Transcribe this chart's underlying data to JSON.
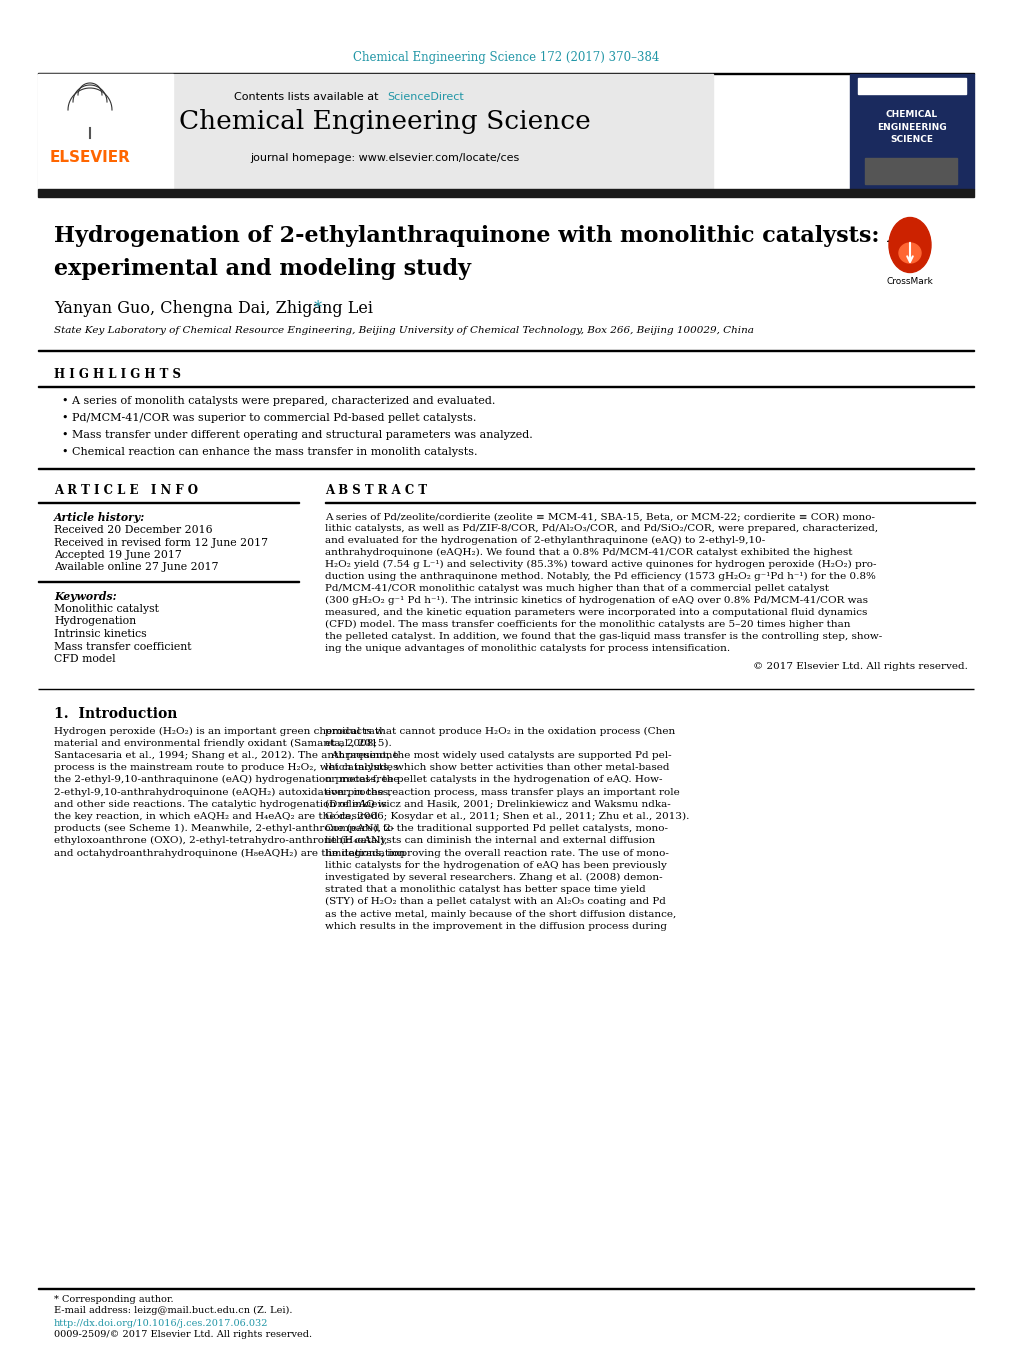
{
  "journal_ref": "Chemical Engineering Science 172 (2017) 370–384",
  "journal_ref_color": "#2196A6",
  "journal_name": "Chemical Engineering Science",
  "contents_line": "Contents lists available at",
  "sciencedirect": "ScienceDirect",
  "sciencedirect_color": "#2196A6",
  "homepage_line": "journal homepage: www.elsevier.com/locate/ces",
  "elsevier_color": "#FF6600",
  "elsevier_text": "ELSEVIER",
  "title_line1": "Hydrogenation of 2-ethylanthraquinone with monolithic catalysts: An",
  "title_line2": "experimental and modeling study",
  "authors": "Yanyan Guo, Chengna Dai, Zhigang Lei",
  "affiliation": "State Key Laboratory of Chemical Resource Engineering, Beijing University of Chemical Technology, Box 266, Beijing 100029, China",
  "highlights_title": "H I G H L I G H T S",
  "highlights": [
    "A series of monolith catalysts were prepared, characterized and evaluated.",
    "Pd/MCM-41/COR was superior to commercial Pd-based pellet catalysts.",
    "Mass transfer under different operating and structural parameters was analyzed.",
    "Chemical reaction can enhance the mass transfer in monolith catalysts."
  ],
  "article_info_title": "A R T I C L E   I N F O",
  "article_history_label": "Article history:",
  "article_history": [
    "Received 20 December 2016",
    "Received in revised form 12 June 2017",
    "Accepted 19 June 2017",
    "Available online 27 June 2017"
  ],
  "keywords_label": "Keywords:",
  "keywords": [
    "Monolithic catalyst",
    "Hydrogenation",
    "Intrinsic kinetics",
    "Mass transfer coefficient",
    "CFD model"
  ],
  "abstract_title": "A B S T R A C T",
  "abstract_lines": [
    "A series of Pd/zeolite/cordierite (zeolite ≡ MCM-41, SBA-15, Beta, or MCM-22; cordierite ≡ COR) mono-",
    "lithic catalysts, as well as Pd/ZIF-8/COR, Pd/Al₂O₃/COR, and Pd/SiO₂/COR, were prepared, characterized,",
    "and evaluated for the hydrogenation of 2-ethylanthraquinone (eAQ) to 2-ethyl-9,10-",
    "anthrahydroquinone (eAQH₂). We found that a 0.8% Pd/MCM-41/COR catalyst exhibited the highest",
    "H₂O₂ yield (7.54 g L⁻¹) and selectivity (85.3%) toward active quinones for hydrogen peroxide (H₂O₂) pro-",
    "duction using the anthraquinone method. Notably, the Pd efficiency (1573 gH₂O₂ g⁻¹Pd h⁻¹) for the 0.8%",
    "Pd/MCM-41/COR monolithic catalyst was much higher than that of a commercial pellet catalyst",
    "(300 gH₂O₂ g⁻¹ Pd h⁻¹). The intrinsic kinetics of hydrogenation of eAQ over 0.8% Pd/MCM-41/COR was",
    "measured, and the kinetic equation parameters were incorporated into a computational fluid dynamics",
    "(CFD) model. The mass transfer coefficients for the monolithic catalysts are 5–20 times higher than",
    "the pelleted catalyst. In addition, we found that the gas-liquid mass transfer is the controlling step, show-",
    "ing the unique advantages of monolithic catalysts for process intensification."
  ],
  "abstract_copyright": "© 2017 Elsevier Ltd. All rights reserved.",
  "intro_title": "1.  Introduction",
  "intro_col1_lines": [
    "Hydrogen peroxide (H₂O₂) is an important green chemical raw",
    "material and environmental friendly oxidant (Samanta, 2008;",
    "Santacesaria et al., 1994; Shang et al., 2012). The anthraquinone",
    "process is the mainstream route to produce H₂O₂, which includes",
    "the 2-ethyl-9,10-anthraquinone (eAQ) hydrogenation process, the",
    "2-ethyl-9,10-anthrahydroquinone (eAQH₂) autoxidation process,",
    "and other side reactions. The catalytic hydrogenation of eAQ is",
    "the key reaction, in which eAQH₂ and H₄eAQ₂ are the desired",
    "products (see Scheme 1). Meanwhile, 2-ethyl-anthrone (eAN), 2-",
    "ethyloxoanthrone (OXO), 2-ethyl-tetrahydro-anthrone (H₄eAN),",
    "and octahydroanthrahydroquinone (H₈eAQH₂) are the degradation"
  ],
  "intro_col2_lines": [
    "products that cannot produce H₂O₂ in the oxidation process (Chen",
    "et al., 2015).",
    "  At present, the most widely used catalysts are supported Pd pel-",
    "let catalysts, which show better activities than other metal-based",
    "or metal-free pellet catalysts in the hydrogenation of eAQ. How-",
    "ever, in the reaction process, mass transfer plays an important role",
    "(Drelinkiewicz and Hasik, 2001; Drelinkiewicz and Waksmu ndka-",
    "Góra, 2006; Kosydar et al., 2011; Shen et al., 2011; Zhu et al., 2013).",
    "Compared to the traditional supported Pd pellet catalysts, mono-",
    "lithic catalysts can diminish the internal and external diffusion",
    "limitations, improving the overall reaction rate. The use of mono-",
    "lithic catalysts for the hydrogenation of eAQ has been previously",
    "investigated by several researchers. Zhang et al. (2008) demon-",
    "strated that a monolithic catalyst has better space time yield",
    "(STY) of H₂O₂ than a pellet catalyst with an Al₂O₃ coating and Pd",
    "as the active metal, mainly because of the short diffusion distance,",
    "which results in the improvement in the diffusion process during"
  ],
  "footnote_star": "* Corresponding author.",
  "footnote_email": "E-mail address: leizg@mail.buct.edu.cn (Z. Lei).",
  "doi_line": "http://dx.doi.org/10.1016/j.ces.2017.06.032",
  "issn_line": "0009-2509/© 2017 Elsevier Ltd. All rights reserved.",
  "bg_color": "#FFFFFF",
  "header_bg": "#E8E8E8",
  "black_bar_color": "#1A1A1A",
  "journal_sidebar_bg": "#1A2A5E",
  "sidebar_text": "CHEMICAL\nENGINEERING\nSCIENCE"
}
